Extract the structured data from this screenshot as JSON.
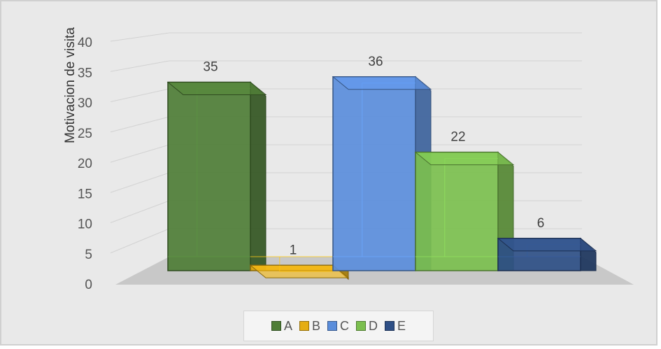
{
  "chart_data": {
    "type": "bar",
    "title": "",
    "xlabel": "",
    "ylabel": "Motivacion de visita",
    "ylim": [
      0,
      40
    ],
    "yticks": [
      0,
      5,
      10,
      15,
      20,
      25,
      30,
      35,
      40
    ],
    "grid": true,
    "legend_position": "bottom",
    "categories": [
      "A",
      "B",
      "C",
      "D",
      "E"
    ],
    "series": [
      {
        "values": [
          35,
          1,
          36,
          22,
          6
        ]
      }
    ],
    "data_labels": [
      "35",
      "1",
      "36",
      "22",
      "6"
    ],
    "colors": [
      "#4e7d36",
      "#e5ad12",
      "#5a8ddb",
      "#7bbf4e",
      "#2e4f86"
    ]
  }
}
